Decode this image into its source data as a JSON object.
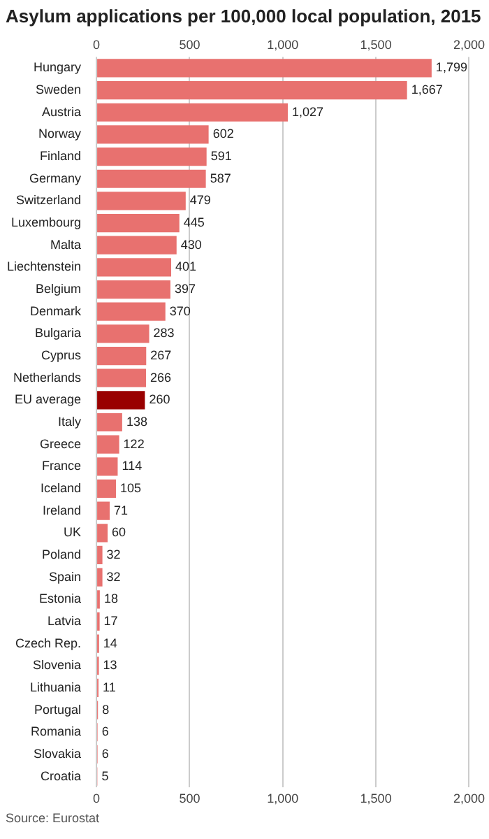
{
  "chart_data": {
    "type": "bar",
    "orientation": "horizontal",
    "title": "Asylum applications per 100,000 local population, 2015",
    "categories": [
      "Hungary",
      "Sweden",
      "Austria",
      "Norway",
      "Finland",
      "Germany",
      "Switzerland",
      "Luxembourg",
      "Malta",
      "Liechtenstein",
      "Belgium",
      "Denmark",
      "Bulgaria",
      "Cyprus",
      "Netherlands",
      "EU average",
      "Italy",
      "Greece",
      "France",
      "Iceland",
      "Ireland",
      "UK",
      "Poland",
      "Spain",
      "Estonia",
      "Latvia",
      "Czech Rep.",
      "Slovenia",
      "Lithuania",
      "Portugal",
      "Romania",
      "Slovakia",
      "Croatia"
    ],
    "values": [
      1799,
      1667,
      1027,
      602,
      591,
      587,
      479,
      445,
      430,
      401,
      397,
      370,
      283,
      267,
      266,
      260,
      138,
      122,
      114,
      105,
      71,
      60,
      32,
      32,
      18,
      17,
      14,
      13,
      11,
      8,
      6,
      6,
      5
    ],
    "value_labels": [
      "1,799",
      "1,667",
      "1,027",
      "602",
      "591",
      "587",
      "479",
      "445",
      "430",
      "401",
      "397",
      "370",
      "283",
      "267",
      "266",
      "260",
      "138",
      "122",
      "114",
      "105",
      "71",
      "60",
      "32",
      "32",
      "18",
      "17",
      "14",
      "13",
      "11",
      "8",
      "6",
      "6",
      "5"
    ],
    "colors": [
      "#e8716f",
      "#e8716f",
      "#e8716f",
      "#e8716f",
      "#e8716f",
      "#e8716f",
      "#e8716f",
      "#e8716f",
      "#e8716f",
      "#e8716f",
      "#e8716f",
      "#e8716f",
      "#e8716f",
      "#e8716f",
      "#e8716f",
      "#990000",
      "#e8716f",
      "#e8716f",
      "#e8716f",
      "#e8716f",
      "#e8716f",
      "#e8716f",
      "#e8716f",
      "#e8716f",
      "#e8716f",
      "#e8716f",
      "#e8716f",
      "#e8716f",
      "#e8716f",
      "#e8716f",
      "#e8716f",
      "#e8716f",
      "#e8716f"
    ],
    "xlim": [
      0,
      2000
    ],
    "xticks": [
      0,
      500,
      {
        "value": 1000,
        "label": "1,000"
      },
      {
        "value": 1500,
        "label": "1,500"
      },
      {
        "value": 2000,
        "label": "2,000"
      }
    ],
    "x2lim": [
      0,
      2000
    ],
    "x2ticks": [
      0,
      500,
      {
        "value": 1000,
        "label": "1,000"
      },
      {
        "value": 1500,
        "label": "1,500"
      },
      {
        "value": 2000,
        "label": "2,000"
      }
    ],
    "grid": "x",
    "legend": false,
    "annotations": [
      "Source: Eurostat"
    ]
  }
}
